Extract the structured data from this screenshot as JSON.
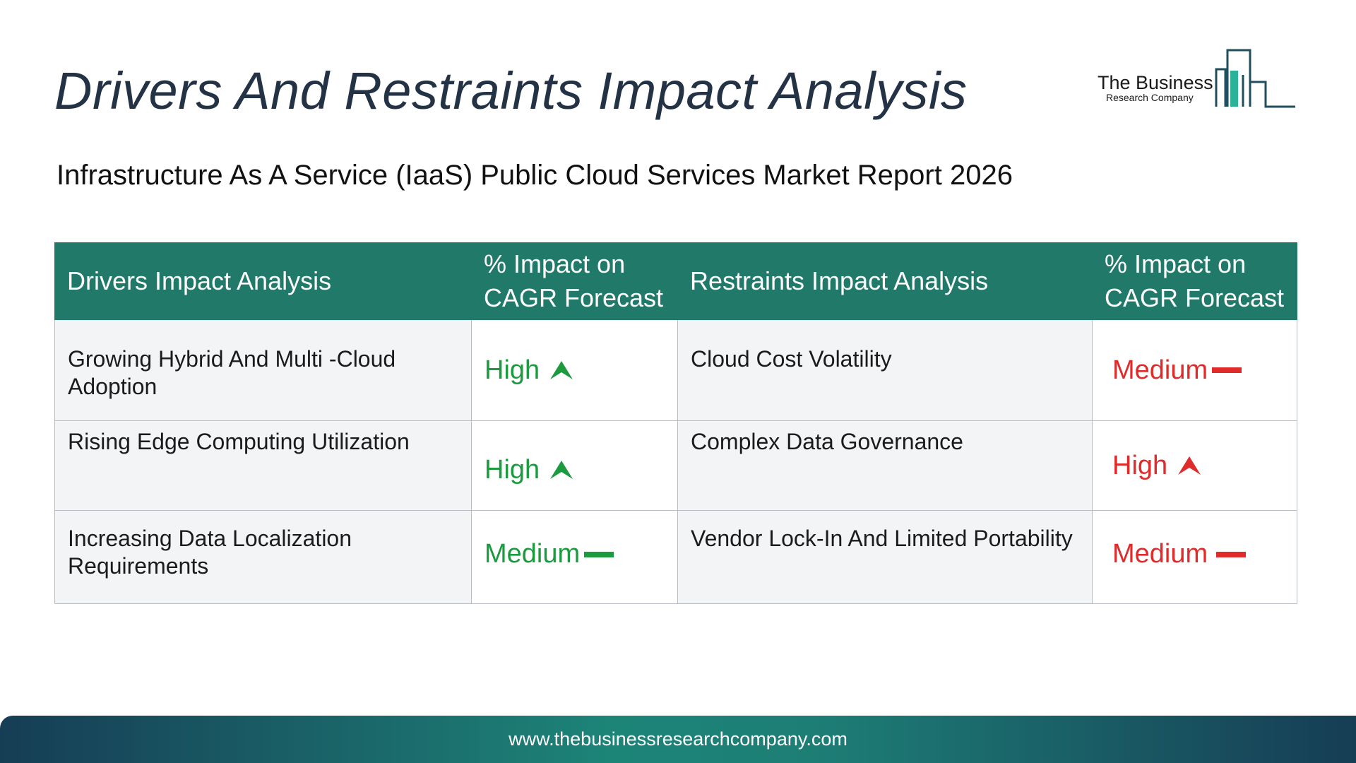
{
  "title": "Drivers And Restraints Impact Analysis",
  "subtitle": "Infrastructure As A Service (IaaS) Public Cloud Services Market Report 2026",
  "logo": {
    "name": "The Business",
    "sub": "Research Company"
  },
  "table": {
    "headers": [
      "Drivers Impact Analysis",
      "% Impact on CAGR Forecast",
      "Restraints Impact Analysis",
      "% Impact on CAGR Forecast"
    ],
    "rows": [
      {
        "driver": "Growing Hybrid And Multi -Cloud Adoption",
        "driver_impact": "High",
        "driver_trend": "up",
        "restraint": "Cloud Cost Volatility",
        "restraint_impact": "Medium",
        "restraint_trend": "flat"
      },
      {
        "driver": "Rising Edge Computing Utilization",
        "driver_impact": "High",
        "driver_trend": "up",
        "restraint": "Complex Data Governance",
        "restraint_impact": "High",
        "restraint_trend": "up"
      },
      {
        "driver": "Increasing Data Localization Requirements",
        "driver_impact": "Medium",
        "driver_trend": "flat",
        "restraint": "Vendor Lock-In And Limited Portability",
        "restraint_impact": "Medium",
        "restraint_trend": "flat"
      }
    ]
  },
  "colors": {
    "header_bg": "#217a69",
    "driver_impact": "#1b9a3e",
    "restraint_impact": "#e02b2b",
    "title": "#233244"
  },
  "footer": {
    "url": "www.thebusinessresearchcompany.com"
  }
}
